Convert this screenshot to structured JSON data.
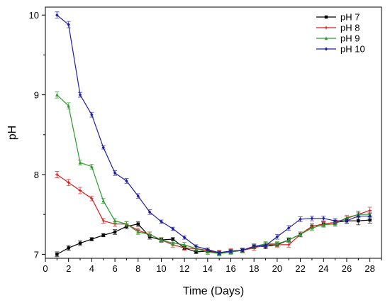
{
  "chart_data": {
    "type": "line",
    "title": "",
    "xlabel": "Time (Days)",
    "ylabel": "pH",
    "xlim": [
      0,
      29
    ],
    "ylim": [
      6.95,
      10.1
    ],
    "xticks": [
      "0",
      "2",
      "4",
      "6",
      "8",
      "10",
      "12",
      "14",
      "16",
      "18",
      "20",
      "22",
      "24",
      "26",
      "28"
    ],
    "yticks": [
      "7",
      "8",
      "9",
      "10"
    ],
    "grid": false,
    "legend_position": "top-right",
    "x": [
      1,
      2,
      3,
      4,
      5,
      6,
      7,
      8,
      9,
      10,
      11,
      12,
      13,
      14,
      15,
      16,
      17,
      18,
      19,
      20,
      21,
      22,
      23,
      24,
      25,
      26,
      27,
      28
    ],
    "series": [
      {
        "name": "pH 7",
        "color": "#000000",
        "marker": "square",
        "values": [
          7.0,
          7.08,
          7.14,
          7.19,
          7.24,
          7.28,
          7.35,
          7.38,
          7.22,
          7.18,
          7.19,
          7.08,
          7.03,
          7.04,
          7.01,
          7.03,
          7.05,
          7.1,
          7.1,
          7.12,
          7.18,
          7.25,
          7.35,
          7.38,
          7.4,
          7.42,
          7.42,
          7.43
        ],
        "errors": [
          0.03,
          0.03,
          0.03,
          0.02,
          0.02,
          0.03,
          0.03,
          0.03,
          0.03,
          0.02,
          0.02,
          0.02,
          0.02,
          0.02,
          0.02,
          0.02,
          0.02,
          0.03,
          0.03,
          0.02,
          0.02,
          0.03,
          0.03,
          0.03,
          0.03,
          0.03,
          0.05,
          0.04
        ]
      },
      {
        "name": "pH 8",
        "color": "#d42020",
        "marker": "plus",
        "values": [
          8.0,
          7.9,
          7.8,
          7.7,
          7.42,
          7.38,
          7.38,
          7.3,
          7.25,
          7.18,
          7.12,
          7.08,
          7.07,
          7.05,
          7.02,
          7.04,
          7.05,
          7.08,
          7.12,
          7.12,
          7.12,
          7.25,
          7.35,
          7.38,
          7.4,
          7.45,
          7.5,
          7.55
        ],
        "errors": [
          0.04,
          0.04,
          0.04,
          0.03,
          0.03,
          0.03,
          0.03,
          0.03,
          0.03,
          0.03,
          0.03,
          0.03,
          0.03,
          0.03,
          0.03,
          0.03,
          0.03,
          0.03,
          0.03,
          0.03,
          0.03,
          0.03,
          0.03,
          0.03,
          0.03,
          0.03,
          0.04,
          0.04
        ]
      },
      {
        "name": "pH 9",
        "color": "#2e9a2e",
        "marker": "triangle",
        "values": [
          9.0,
          8.86,
          8.15,
          8.1,
          7.67,
          7.42,
          7.38,
          7.28,
          7.25,
          7.18,
          7.14,
          7.12,
          7.07,
          7.03,
          7.01,
          7.03,
          7.05,
          7.1,
          7.13,
          7.13,
          7.18,
          7.25,
          7.33,
          7.37,
          7.38,
          7.46,
          7.5,
          7.5
        ],
        "errors": [
          0.04,
          0.04,
          0.03,
          0.03,
          0.03,
          0.03,
          0.03,
          0.03,
          0.03,
          0.03,
          0.03,
          0.03,
          0.03,
          0.03,
          0.03,
          0.03,
          0.03,
          0.03,
          0.03,
          0.03,
          0.03,
          0.03,
          0.03,
          0.03,
          0.03,
          0.03,
          0.04,
          0.04
        ]
      },
      {
        "name": "pH 10",
        "color": "#1f1f9e",
        "marker": "diamond",
        "values": [
          10.0,
          9.88,
          9.0,
          8.75,
          8.34,
          8.02,
          7.92,
          7.73,
          7.53,
          7.41,
          7.32,
          7.21,
          7.1,
          7.06,
          7.02,
          7.04,
          7.05,
          7.1,
          7.11,
          7.22,
          7.33,
          7.44,
          7.45,
          7.45,
          7.42,
          7.42,
          7.48,
          7.48
        ],
        "errors": [
          0.04,
          0.04,
          0.03,
          0.03,
          0.02,
          0.03,
          0.03,
          0.03,
          0.03,
          0.02,
          0.02,
          0.02,
          0.02,
          0.02,
          0.02,
          0.02,
          0.02,
          0.02,
          0.02,
          0.03,
          0.03,
          0.03,
          0.03,
          0.03,
          0.03,
          0.03,
          0.04,
          0.04
        ]
      }
    ]
  }
}
